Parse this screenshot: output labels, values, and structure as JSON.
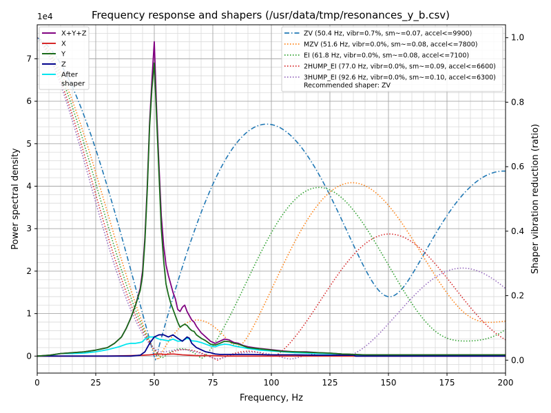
{
  "chart_data": {
    "type": "line",
    "title": "Frequency response and shapers (/usr/data/tmp/resonances_y_b.csv)",
    "xlabel": "Frequency, Hz",
    "ylabel": "Power spectral density",
    "y2label": "Shaper vibration reduction (ratio)",
    "y_offset_label": "1e4",
    "xlim": [
      0,
      200
    ],
    "ylim": [
      -0.4,
      7.8
    ],
    "y2lim": [
      -0.04,
      1.04
    ],
    "xticks": [
      "0",
      "25",
      "50",
      "75",
      "100",
      "125",
      "150",
      "175",
      "200"
    ],
    "yticks": [
      "0",
      "1",
      "2",
      "3",
      "4",
      "5",
      "6",
      "7"
    ],
    "y2ticks": [
      "0.0",
      "0.2",
      "0.4",
      "0.6",
      "0.8",
      "1.0"
    ],
    "grid": "major and minor",
    "legend_left_position": "top-left",
    "legend_right_position": "top-right",
    "psd_series": [
      {
        "name": "X+Y+Z",
        "color": "#800080",
        "style": "solid",
        "x": [
          0,
          5,
          10,
          15,
          20,
          25,
          30,
          33,
          36,
          38,
          40,
          42,
          44,
          45,
          46,
          47,
          48,
          49,
          50,
          51,
          52,
          53,
          54,
          55,
          56,
          57,
          58,
          59,
          60,
          61,
          62,
          63,
          64,
          65,
          66,
          67,
          68,
          70,
          72,
          74,
          76,
          78,
          80,
          82,
          84,
          86,
          88,
          90,
          95,
          100,
          105,
          110,
          115,
          120,
          125,
          130,
          135,
          140,
          150,
          160,
          170,
          180,
          190,
          200
        ],
        "y": [
          0,
          0.02,
          0.06,
          0.08,
          0.1,
          0.14,
          0.2,
          0.3,
          0.45,
          0.65,
          0.9,
          1.2,
          1.6,
          2.0,
          2.8,
          4.0,
          5.5,
          6.5,
          7.4,
          5.8,
          4.5,
          3.3,
          2.6,
          2.15,
          1.9,
          1.7,
          1.5,
          1.35,
          1.1,
          1.05,
          1.15,
          1.2,
          1.05,
          0.95,
          0.85,
          0.8,
          0.7,
          0.55,
          0.45,
          0.35,
          0.3,
          0.35,
          0.4,
          0.38,
          0.32,
          0.3,
          0.25,
          0.22,
          0.18,
          0.15,
          0.12,
          0.1,
          0.1,
          0.08,
          0.07,
          0.05,
          0.04,
          0.03,
          0.03,
          0.03,
          0.03,
          0.03,
          0.03,
          0.03
        ]
      },
      {
        "name": "X",
        "color": "#d62728",
        "style": "solid",
        "x": [
          0,
          30,
          40,
          45,
          48,
          50,
          52,
          55,
          58,
          60,
          62,
          65,
          68,
          70,
          75,
          80,
          90,
          100,
          200
        ],
        "y": [
          0,
          0,
          0.01,
          0.02,
          0.03,
          0.04,
          0.05,
          0.04,
          0.05,
          0.04,
          0.03,
          0.02,
          0.01,
          0.01,
          0.01,
          0.0,
          0.0,
          0.0,
          0.0
        ]
      },
      {
        "name": "Y",
        "color": "#1a6b1a",
        "style": "solid",
        "x": [
          0,
          5,
          10,
          15,
          20,
          25,
          30,
          33,
          36,
          38,
          40,
          42,
          44,
          45,
          46,
          47,
          48,
          49,
          50,
          51,
          52,
          53,
          54,
          55,
          56,
          57,
          58,
          59,
          60,
          61,
          62,
          63,
          64,
          65,
          66,
          67,
          68,
          70,
          72,
          74,
          76,
          78,
          80,
          82,
          84,
          86,
          88,
          90,
          95,
          100,
          105,
          110,
          115,
          120,
          125,
          130,
          135,
          140,
          150,
          160,
          170,
          180,
          190,
          200
        ],
        "y": [
          0,
          0.02,
          0.06,
          0.08,
          0.1,
          0.14,
          0.2,
          0.3,
          0.45,
          0.65,
          0.9,
          1.2,
          1.55,
          1.9,
          2.7,
          3.9,
          5.4,
          6.3,
          6.9,
          5.6,
          4.3,
          3.0,
          2.25,
          1.7,
          1.45,
          1.25,
          1.1,
          0.95,
          0.8,
          0.68,
          0.72,
          0.75,
          0.72,
          0.65,
          0.6,
          0.58,
          0.5,
          0.42,
          0.36,
          0.28,
          0.26,
          0.3,
          0.35,
          0.34,
          0.3,
          0.28,
          0.24,
          0.2,
          0.17,
          0.14,
          0.11,
          0.1,
          0.09,
          0.08,
          0.07,
          0.05,
          0.04,
          0.03,
          0.03,
          0.03,
          0.03,
          0.03,
          0.03,
          0.03
        ]
      },
      {
        "name": "Z",
        "color": "#00008b",
        "style": "solid",
        "x": [
          0,
          40,
          44,
          46,
          48,
          50,
          52,
          54,
          56,
          58,
          60,
          62,
          64,
          65,
          66,
          68,
          70,
          72,
          74,
          76,
          78,
          80,
          90,
          100,
          110,
          120,
          130,
          135,
          136,
          140,
          200
        ],
        "y": [
          0,
          0,
          0.02,
          0.1,
          0.3,
          0.45,
          0.5,
          0.5,
          0.45,
          0.5,
          0.42,
          0.35,
          0.45,
          0.42,
          0.3,
          0.2,
          0.15,
          0.1,
          0.08,
          0.05,
          0.04,
          0.04,
          0.04,
          0.03,
          0.03,
          0.02,
          0.02,
          0.02,
          0.0,
          0.0,
          0.0
        ]
      },
      {
        "name": "After\nshaper",
        "color": "#00e5ee",
        "style": "solid",
        "x": [
          0,
          5,
          8,
          10,
          15,
          20,
          25,
          30,
          35,
          38,
          40,
          42,
          44,
          45,
          46,
          48,
          50,
          52,
          54,
          56,
          58,
          60,
          62,
          64,
          65,
          66,
          68,
          70,
          72,
          74,
          76,
          78,
          80,
          82,
          84,
          86,
          88,
          90,
          95,
          100,
          110,
          120,
          130,
          135,
          136,
          140,
          200
        ],
        "y": [
          0,
          0.01,
          0.04,
          0.06,
          0.06,
          0.07,
          0.1,
          0.15,
          0.22,
          0.28,
          0.3,
          0.3,
          0.32,
          0.34,
          0.4,
          0.45,
          0.45,
          0.4,
          0.38,
          0.36,
          0.4,
          0.35,
          0.36,
          0.42,
          0.4,
          0.36,
          0.35,
          0.32,
          0.28,
          0.24,
          0.22,
          0.26,
          0.28,
          0.27,
          0.24,
          0.22,
          0.2,
          0.18,
          0.14,
          0.12,
          0.08,
          0.06,
          0.05,
          0.03,
          0.02,
          0.02,
          0.02
        ]
      }
    ],
    "shaper_series": [
      {
        "name": "ZV (50.4 Hz, vibr=0.7%, sm~=0.07, accel<=9900)",
        "color": "#1f77b4",
        "style": "dashdot",
        "f": 50.4,
        "kind": "zv"
      },
      {
        "name": "MZV (51.6 Hz, vibr=0.0%, sm~=0.08, accel<=7800)",
        "color": "#ff7f0e",
        "style": "dotted",
        "f": 51.6,
        "kind": "mzv"
      },
      {
        "name": "EI (61.8 Hz, vibr=0.0%, sm~=0.08, accel<=7100)",
        "color": "#2ca02c",
        "style": "dotted",
        "f": 61.8,
        "kind": "ei"
      },
      {
        "name": "2HUMP_EI (77.0 Hz, vibr=0.0%, sm~=0.09, accel<=6600)",
        "color": "#d62728",
        "style": "dotted",
        "f": 77.0,
        "kind": "2hump_ei"
      },
      {
        "name": "3HUMP_EI (92.6 Hz, vibr=0.0%, sm~=0.10, accel<=6300)",
        "color": "#9467bd",
        "style": "dotted",
        "f": 92.6,
        "kind": "3hump_ei"
      }
    ],
    "recommended_text": "Recommended shaper: ZV"
  }
}
